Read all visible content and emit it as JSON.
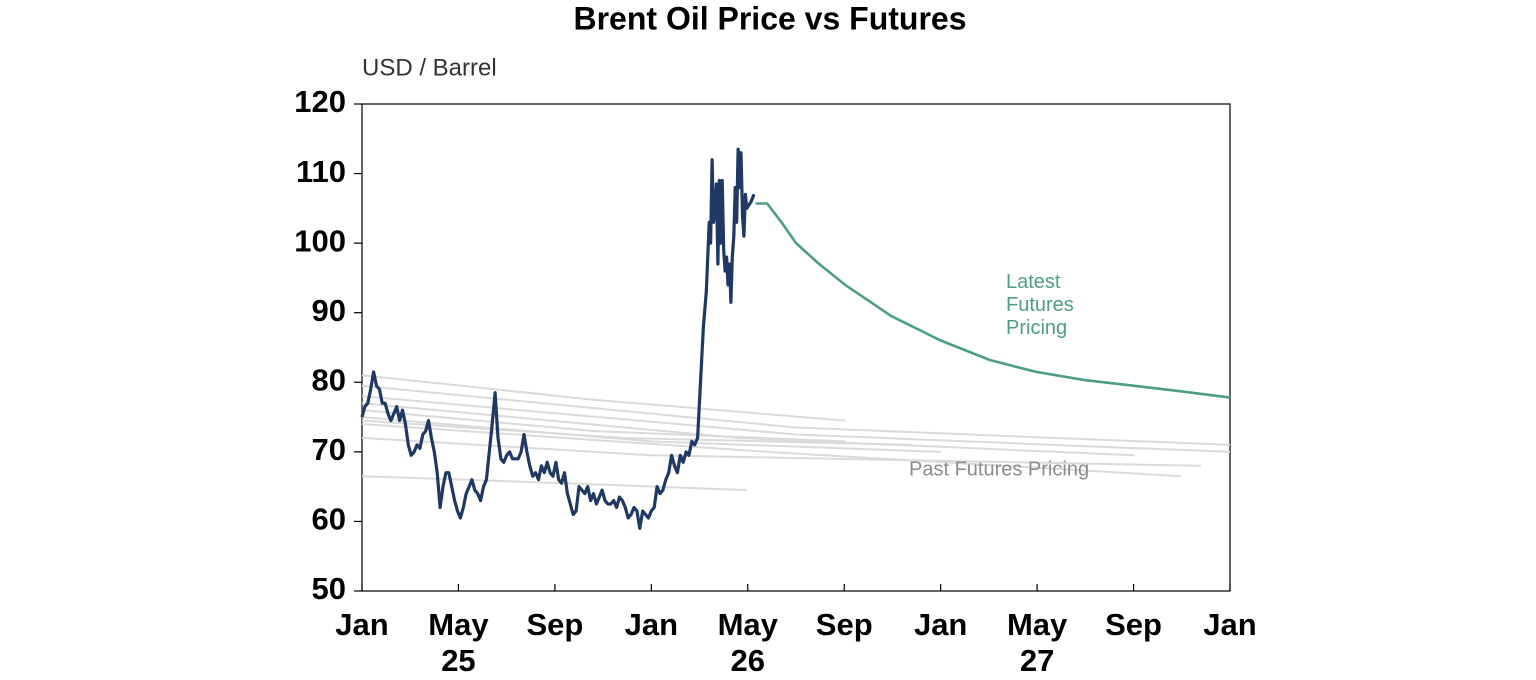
{
  "chart_data": {
    "type": "line",
    "title": "Brent Oil Price vs Futures",
    "y_label": "USD / Barrel",
    "ylim": [
      50,
      120
    ],
    "yticks": [
      50,
      60,
      70,
      80,
      90,
      100,
      110,
      120
    ],
    "xlim": [
      2025,
      2028
    ],
    "xticks": [
      {
        "value": 2025,
        "label": "Jan"
      },
      {
        "value": 2025.3333,
        "label": "May"
      },
      {
        "value": 2025.6667,
        "label": "Sep"
      },
      {
        "value": 2026,
        "label": "Jan"
      },
      {
        "value": 2026.3333,
        "label": "May"
      },
      {
        "value": 2026.6667,
        "label": "Sep"
      },
      {
        "value": 2027,
        "label": "Jan"
      },
      {
        "value": 2027.3333,
        "label": "May"
      },
      {
        "value": 2027.6667,
        "label": "Sep"
      },
      {
        "value": 2028,
        "label": "Jan"
      }
    ],
    "year_labels": [
      {
        "value": 2025.3333,
        "label": "25"
      },
      {
        "value": 2026.3333,
        "label": "26"
      },
      {
        "value": 2027.3333,
        "label": "27"
      }
    ],
    "annotations": [
      {
        "text": "Latest Futures Pricing",
        "color": "#4e9e85"
      },
      {
        "text": "Past Futures Pricing",
        "color": "#8c8c8c"
      }
    ],
    "series": [
      {
        "color": "#dadada",
        "x": [
          2025.0,
          2025.8,
          2026.67
        ],
        "values": [
          81,
          77.5,
          74.5
        ]
      },
      {
        "color": "#dadada",
        "x": [
          2025.0,
          2026.5,
          2028.0
        ],
        "values": [
          79.5,
          73.5,
          71
        ]
      },
      {
        "color": "#dadada",
        "x": [
          2025.0,
          2026.5,
          2028.0
        ],
        "values": [
          78,
          72.5,
          70
        ]
      },
      {
        "color": "#dadada",
        "x": [
          2025.0,
          2026.3,
          2027.67
        ],
        "values": [
          77,
          72,
          69.5
        ]
      },
      {
        "color": "#dadada",
        "x": [
          2025.0,
          2025.8,
          2026.67
        ],
        "values": [
          76,
          73,
          71.5
        ]
      },
      {
        "color": "#dadada",
        "x": [
          2025.0,
          2026.0,
          2027.0
        ],
        "values": [
          75,
          71.5,
          70
        ]
      },
      {
        "color": "#dadada",
        "x": [
          2025.0,
          2025.9,
          2026.9
        ],
        "values": [
          74.5,
          72,
          71
        ]
      },
      {
        "color": "#dadada",
        "x": [
          2025.0,
          2026.4,
          2027.83
        ],
        "values": [
          74,
          70,
          66.5
        ]
      },
      {
        "color": "#dadada",
        "x": [
          2025.0,
          2026.0,
          2027.9
        ],
        "values": [
          72,
          69.5,
          68
        ]
      },
      {
        "color": "#dadada",
        "x": [
          2025.0,
          2025.7,
          2026.33
        ],
        "values": [
          66.5,
          65.5,
          64.5
        ]
      },
      {
        "color": "#4e9e85",
        "x": [
          2026.36,
          2026.4,
          2026.45,
          2026.5,
          2026.58,
          2026.67,
          2026.83,
          2027.0,
          2027.17,
          2027.33,
          2027.5,
          2027.67,
          2027.83,
          2028.0
        ],
        "values": [
          105.7,
          105.7,
          103,
          100,
          97,
          94,
          89.5,
          86,
          83.2,
          81.5,
          80.3,
          79.5,
          78.7,
          77.8
        ]
      },
      {
        "color": "#1f3864",
        "x": [
          2025.0,
          2025.01,
          2025.02,
          2025.03,
          2025.04,
          2025.05,
          2025.06,
          2025.07,
          2025.08,
          2025.09,
          2025.1,
          2025.11,
          2025.12,
          2025.13,
          2025.14,
          2025.15,
          2025.16,
          2025.17,
          2025.18,
          2025.19,
          2025.2,
          2025.21,
          2025.22,
          2025.23,
          2025.24,
          2025.25,
          2025.26,
          2025.27,
          2025.28,
          2025.29,
          2025.3,
          2025.31,
          2025.32,
          2025.33,
          2025.34,
          2025.35,
          2025.36,
          2025.37,
          2025.38,
          2025.39,
          2025.4,
          2025.41,
          2025.42,
          2025.43,
          2025.44,
          2025.45,
          2025.46,
          2025.47,
          2025.48,
          2025.49,
          2025.5,
          2025.51,
          2025.52,
          2025.53,
          2025.54,
          2025.55,
          2025.56,
          2025.57,
          2025.58,
          2025.59,
          2025.6,
          2025.61,
          2025.62,
          2025.63,
          2025.64,
          2025.65,
          2025.66,
          2025.67,
          2025.68,
          2025.69,
          2025.7,
          2025.71,
          2025.72,
          2025.73,
          2025.74,
          2025.75,
          2025.76,
          2025.77,
          2025.78,
          2025.79,
          2025.8,
          2025.81,
          2025.82,
          2025.83,
          2025.84,
          2025.85,
          2025.86,
          2025.87,
          2025.88,
          2025.89,
          2025.9,
          2025.91,
          2025.92,
          2025.93,
          2025.94,
          2025.95,
          2025.96,
          2025.97,
          2025.98,
          2025.99,
          2026.0,
          2026.01,
          2026.02,
          2026.03,
          2026.04,
          2026.05,
          2026.06,
          2026.07,
          2026.08,
          2026.09,
          2026.1,
          2026.11,
          2026.12,
          2026.13,
          2026.14,
          2026.15,
          2026.16,
          2026.17,
          2026.18,
          2026.19,
          2026.2,
          2026.205,
          2026.21,
          2026.215,
          2026.22,
          2026.225,
          2026.23,
          2026.235,
          2026.24,
          2026.245,
          2026.25,
          2026.255,
          2026.26,
          2026.265,
          2026.27,
          2026.275,
          2026.28,
          2026.285,
          2026.29,
          2026.295,
          2026.3,
          2026.305,
          2026.31,
          2026.315,
          2026.32,
          2026.325,
          2026.33,
          2026.345,
          2026.355
        ],
        "values": [
          75,
          76.5,
          77,
          79,
          81.5,
          79.5,
          79,
          77,
          77,
          75.5,
          74.5,
          75.5,
          76.5,
          74.5,
          76,
          74,
          71,
          69.5,
          70,
          71,
          70.5,
          72.5,
          73,
          74.5,
          72,
          70,
          67,
          62,
          65,
          67,
          67,
          65,
          63,
          61.5,
          60.5,
          62,
          64,
          65,
          66,
          64.5,
          64,
          63,
          65,
          66,
          70,
          74,
          78.5,
          72,
          69,
          68.5,
          69.5,
          70,
          69,
          69,
          69,
          70,
          72.5,
          70,
          68,
          66.5,
          67,
          66,
          68,
          67,
          68.5,
          67,
          66.5,
          68.5,
          66,
          65.5,
          67,
          64,
          62.5,
          61,
          61.5,
          65,
          64.5,
          64,
          65,
          63,
          64,
          62.5,
          63.5,
          64.5,
          63,
          62.5,
          62.5,
          63,
          62,
          63.5,
          63,
          62,
          60.5,
          61,
          62,
          61.5,
          59,
          61.5,
          61,
          60.5,
          61.5,
          62,
          65,
          64,
          64.5,
          66,
          67,
          69.5,
          68,
          67,
          69.5,
          68.5,
          70,
          69.5,
          71.5,
          71,
          72,
          80,
          88,
          93,
          103,
          100,
          112,
          103,
          105,
          108.5,
          97,
          109,
          100,
          109,
          99,
          96,
          98,
          94,
          97,
          91.5,
          98,
          101,
          108,
          103,
          113.5,
          108,
          113,
          104,
          101,
          107,
          105,
          106,
          107
        ]
      }
    ]
  }
}
